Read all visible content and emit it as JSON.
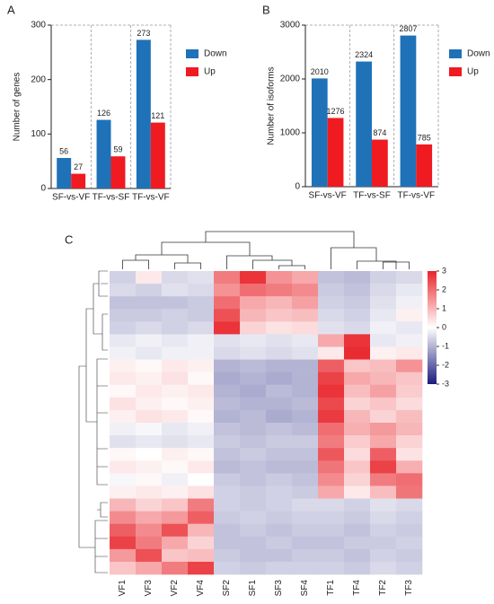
{
  "chart_data": [
    {
      "type": "bar",
      "panel_label": "A",
      "ylabel": "Number of genes",
      "categories": [
        "SF-vs-VF",
        "TF-vs-SF",
        "TF-vs-VF"
      ],
      "series": [
        {
          "name": "Down",
          "color": "#1f72b8",
          "values": [
            56,
            126,
            273
          ]
        },
        {
          "name": "Up",
          "color": "#f01a21",
          "values": [
            27,
            59,
            121
          ]
        }
      ],
      "ylim": [
        0,
        300
      ],
      "yticks": [
        0,
        100,
        200,
        300
      ],
      "legend": "right"
    },
    {
      "type": "bar",
      "panel_label": "B",
      "ylabel": "Number of isoforms",
      "categories": [
        "SF-vs-VF",
        "TF-vs-SF",
        "TF-vs-VF"
      ],
      "series": [
        {
          "name": "Down",
          "color": "#1f72b8",
          "values": [
            2010,
            2324,
            2807
          ]
        },
        {
          "name": "Up",
          "color": "#f01a21",
          "values": [
            1276,
            874,
            785
          ]
        }
      ],
      "ylim": [
        0,
        3000
      ],
      "yticks": [
        0,
        1000,
        2000,
        3000
      ],
      "legend": "right"
    },
    {
      "type": "heatmap",
      "panel_label": "C",
      "columns": [
        "VF1",
        "VF3",
        "VF2",
        "VF4",
        "SF2",
        "SF1",
        "SF3",
        "SF4",
        "TF1",
        "TF4",
        "TF2",
        "TF3"
      ],
      "zlim": [
        -3,
        3
      ],
      "zticks": [
        3,
        2,
        1,
        0,
        -1,
        -2,
        -3
      ],
      "colors": [
        "#1b1b7d",
        "#ffffff",
        "#e8252b"
      ],
      "values": [
        [
          -0.6,
          0.3,
          -0.5,
          -0.4,
          1.8,
          2.8,
          1.5,
          1.2,
          -0.8,
          -0.9,
          -0.6,
          -0.5
        ],
        [
          -0.5,
          -0.6,
          -0.4,
          -0.5,
          1.5,
          2.0,
          1.8,
          1.6,
          -0.7,
          -0.8,
          -0.5,
          -0.3
        ],
        [
          -0.8,
          -0.8,
          -0.8,
          -0.7,
          2.0,
          1.2,
          1.0,
          1.3,
          -0.6,
          -0.7,
          -0.4,
          -0.2
        ],
        [
          -0.7,
          -0.7,
          -0.6,
          -0.7,
          2.4,
          1.0,
          0.8,
          0.9,
          -0.5,
          -0.6,
          -0.3,
          0.2
        ],
        [
          -0.6,
          -0.5,
          -0.6,
          -0.5,
          2.8,
          0.6,
          0.4,
          0.5,
          -0.4,
          -0.5,
          -0.2,
          -0.3
        ],
        [
          -0.3,
          -0.2,
          -0.3,
          -0.2,
          -0.4,
          -0.3,
          -0.4,
          -0.3,
          1.2,
          2.8,
          -0.3,
          -0.2
        ],
        [
          -0.2,
          -0.3,
          -0.2,
          -0.2,
          -0.5,
          -0.4,
          -0.5,
          -0.4,
          0.3,
          2.9,
          0.2,
          0.3
        ],
        [
          0.2,
          0.1,
          0.3,
          0.2,
          -1.0,
          -0.9,
          -1.0,
          -1.0,
          2.2,
          0.8,
          0.9,
          1.5
        ],
        [
          0.3,
          0.2,
          0.4,
          0.1,
          -1.1,
          -1.0,
          -1.1,
          -1.0,
          2.6,
          1.2,
          1.0,
          0.8
        ],
        [
          0.1,
          0.3,
          0.2,
          0.3,
          -1.0,
          -1.1,
          -0.9,
          -1.0,
          2.8,
          0.9,
          1.3,
          0.7
        ],
        [
          0.4,
          0.2,
          0.1,
          0.2,
          -0.9,
          -1.0,
          -1.0,
          -0.9,
          2.5,
          0.6,
          0.8,
          0.5
        ],
        [
          0.2,
          0.4,
          0.3,
          0.1,
          -1.0,
          -0.9,
          -1.1,
          -1.0,
          2.7,
          1.0,
          0.6,
          0.9
        ],
        [
          -0.2,
          -0.1,
          -0.3,
          -0.2,
          -0.8,
          -0.9,
          -0.8,
          -0.9,
          2.0,
          1.1,
          1.4,
          1.0
        ],
        [
          -0.4,
          -0.3,
          -0.4,
          -0.3,
          -0.7,
          -0.8,
          -0.7,
          -0.7,
          1.8,
          0.7,
          1.2,
          0.6
        ],
        [
          0.1,
          0.0,
          0.2,
          0.1,
          -0.8,
          -0.7,
          -0.8,
          -0.8,
          2.3,
          0.5,
          2.2,
          0.4
        ],
        [
          0.3,
          0.2,
          0.1,
          0.3,
          -0.9,
          -0.8,
          -0.9,
          -0.9,
          1.9,
          0.8,
          2.6,
          1.1
        ],
        [
          -0.1,
          0.1,
          -0.2,
          0.0,
          -0.7,
          -0.8,
          -0.7,
          -0.8,
          1.6,
          0.6,
          1.8,
          2.0
        ],
        [
          0.2,
          0.3,
          0.2,
          0.4,
          -0.6,
          -0.7,
          -0.6,
          -0.7,
          1.2,
          0.3,
          0.9,
          1.9
        ],
        [
          1.0,
          0.6,
          0.8,
          1.8,
          -0.6,
          -0.7,
          -0.6,
          -0.5,
          -0.5,
          -0.6,
          -0.4,
          -0.5
        ],
        [
          1.6,
          1.2,
          1.4,
          2.2,
          -0.7,
          -0.6,
          -0.7,
          -0.6,
          -0.6,
          -0.7,
          -0.5,
          -0.6
        ],
        [
          2.2,
          1.6,
          2.4,
          1.0,
          -0.8,
          -0.7,
          -0.8,
          -0.7,
          -0.7,
          -0.8,
          -0.6,
          -0.7
        ],
        [
          2.6,
          1.8,
          1.2,
          0.6,
          -0.8,
          -0.8,
          -0.7,
          -0.8,
          -0.8,
          -0.7,
          -0.7,
          -0.6
        ],
        [
          1.4,
          2.4,
          0.8,
          0.9,
          -0.7,
          -0.8,
          -0.8,
          -0.7,
          -0.7,
          -0.8,
          -0.6,
          -0.7
        ],
        [
          0.8,
          1.2,
          1.8,
          2.6,
          -0.6,
          -0.7,
          -0.6,
          -0.6,
          -0.6,
          -0.7,
          -0.5,
          -0.6
        ]
      ]
    }
  ]
}
